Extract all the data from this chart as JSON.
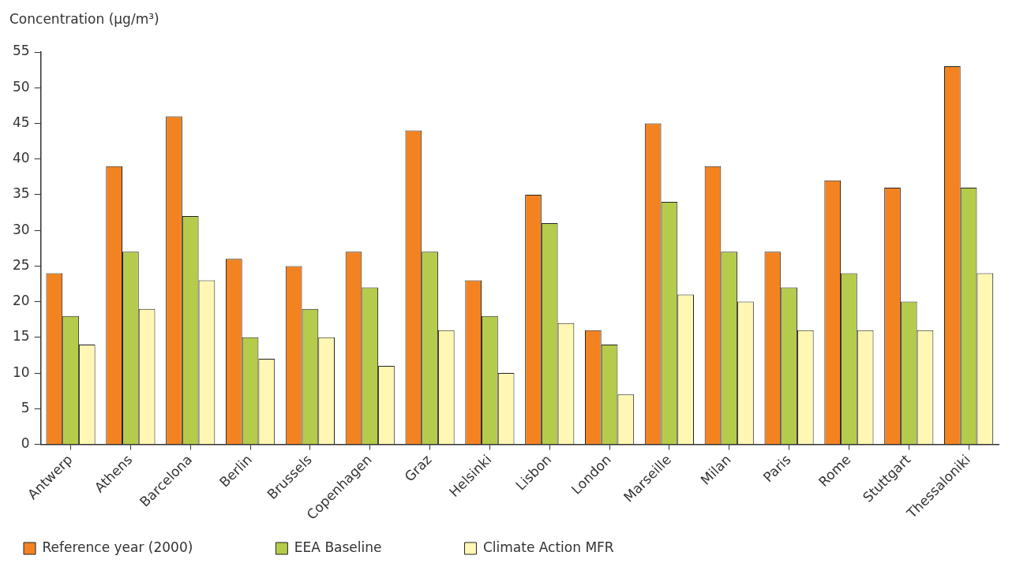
{
  "chart_data": {
    "type": "bar",
    "ylabel": "Concentration (μg/m³)",
    "categories": [
      "Antwerp",
      "Athens",
      "Barcelona",
      "Berlin",
      "Brussels",
      "Copenhagen",
      "Graz",
      "Helsinki",
      "Lisbon",
      "London",
      "Marseille",
      "Milan",
      "Paris",
      "Rome",
      "Stuttgart",
      "Thessaloniki"
    ],
    "series": [
      {
        "name": "Reference year (2000)",
        "color": "#f38321",
        "values": [
          24,
          39,
          46,
          26,
          25,
          27,
          44,
          23,
          35,
          16,
          45,
          39,
          27,
          37,
          36,
          53
        ]
      },
      {
        "name": "EEA Baseline",
        "color": "#b5cb4b",
        "values": [
          18,
          27,
          32,
          15,
          19,
          22,
          27,
          18,
          31,
          14,
          34,
          27,
          22,
          24,
          20,
          36
        ]
      },
      {
        "name": "Climate Action MFR",
        "color": "#fff7b3",
        "values": [
          14,
          19,
          23,
          12,
          15,
          11,
          16,
          10,
          17,
          7,
          21,
          20,
          16,
          16,
          16,
          24
        ]
      }
    ],
    "ylim": [
      0,
      55
    ],
    "yticks": [
      0,
      5,
      10,
      15,
      20,
      25,
      30,
      35,
      40,
      45,
      50,
      55
    ],
    "legend": "bottom"
  }
}
